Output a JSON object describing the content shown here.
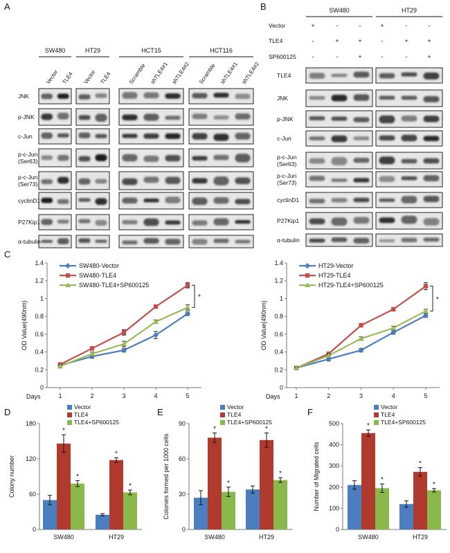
{
  "panels": {
    "A": {
      "letter": "A",
      "groups": [
        {
          "name": "SW480",
          "lanes": [
            "Vector",
            "TLE4"
          ]
        },
        {
          "name": "HT29",
          "lanes": [
            "Vector",
            "TLE4"
          ]
        },
        {
          "name": "HCT15",
          "lanes": [
            "Scramble",
            "shTLE4#1",
            "shTLE4#2"
          ]
        },
        {
          "name": "HCT116",
          "lanes": [
            "Scramble",
            "shTLE4#1",
            "shTLE4#2"
          ]
        }
      ],
      "rows": [
        "JNK",
        "p-JNK",
        "c-Jun",
        "p-c-Jun\n(Ser63)",
        "p-c-Jun\n(Ser73)",
        "cyclinD1",
        "P27Kip1",
        "α-tubulin"
      ]
    },
    "B": {
      "letter": "B",
      "groups": [
        "SW480",
        "HT29"
      ],
      "treatments": [
        {
          "label": "Vector",
          "signs": [
            "+",
            "-",
            "-",
            "+",
            "-",
            "-"
          ]
        },
        {
          "label": "TLE4",
          "signs": [
            "-",
            "+",
            "+",
            "-",
            "+",
            "+"
          ]
        },
        {
          "label": "SP600125",
          "signs": [
            "-",
            "-",
            "+",
            "-",
            "-",
            "+"
          ]
        }
      ],
      "rows": [
        "TLE4",
        "JNK",
        "p-JNK",
        "c-Jun",
        "p-c-Jun\n(Ser63)",
        "p-c-Jun\n(Ser73)",
        "cyclinD1",
        "P27Kip1",
        "α-tubulin"
      ]
    },
    "C": {
      "letter": "C"
    },
    "D": {
      "letter": "D"
    },
    "E": {
      "letter": "E"
    },
    "F": {
      "letter": "F"
    }
  },
  "colors": {
    "vector": "#4a7ebf",
    "tle4": "#c0504d",
    "sp": "#9bbb59",
    "bar_vector": "#4a7ebf",
    "bar_tle4": "#b03a2e",
    "bar_sp": "#8ab84a"
  },
  "chart_data": [
    {
      "id": "C-left",
      "type": "line",
      "x": [
        1,
        2,
        3,
        4,
        5
      ],
      "xlabel": "Days",
      "ylabel": "OD Value(490nm)",
      "ylim": [
        0,
        1.4
      ],
      "yticks": [
        0,
        0.2,
        0.4,
        0.6,
        0.8,
        1.0,
        1.2,
        1.4
      ],
      "yticklabels": [
        "0",
        "0.2",
        "0.4",
        "0.6",
        "0.8",
        "1",
        "1.2",
        "1.4"
      ],
      "series": [
        {
          "name": "SW480-Vector",
          "values": [
            0.25,
            0.35,
            0.42,
            0.59,
            0.83
          ],
          "errors": [
            0.02,
            0.02,
            0.02,
            0.04,
            0.02
          ]
        },
        {
          "name": "SW480-TLE4",
          "values": [
            0.26,
            0.44,
            0.62,
            0.91,
            1.15
          ],
          "errors": [
            0.02,
            0.02,
            0.03,
            0.02,
            0.03
          ]
        },
        {
          "name": "SW480-TLE4+SP600125",
          "values": [
            0.24,
            0.38,
            0.49,
            0.74,
            0.9
          ],
          "errors": [
            0.02,
            0.02,
            0.03,
            0.02,
            0.03
          ]
        }
      ],
      "annotation": "*"
    },
    {
      "id": "C-right",
      "type": "line",
      "x": [
        1,
        2,
        3,
        4,
        5
      ],
      "xlabel": "Days",
      "ylabel": "OD Value(490nm)",
      "ylim": [
        0,
        1.4
      ],
      "yticks": [
        0,
        0.2,
        0.4,
        0.6,
        0.8,
        1.0,
        1.2,
        1.4
      ],
      "yticklabels": [
        "0",
        "0.2",
        "0.4",
        "0.6",
        "0.8",
        "1",
        "1.2",
        "1.4"
      ],
      "series": [
        {
          "name": "HT29-Vector",
          "values": [
            0.22,
            0.32,
            0.42,
            0.62,
            0.81
          ],
          "errors": [
            0.01,
            0.02,
            0.02,
            0.02,
            0.02
          ]
        },
        {
          "name": "HT29-TLE4",
          "values": [
            0.22,
            0.38,
            0.7,
            0.88,
            1.14
          ],
          "errors": [
            0.01,
            0.02,
            0.02,
            0.02,
            0.04
          ]
        },
        {
          "name": "HT29-TLE4+SP600125",
          "values": [
            0.22,
            0.36,
            0.55,
            0.67,
            0.86
          ],
          "errors": [
            0.01,
            0.02,
            0.02,
            0.02,
            0.02
          ]
        }
      ],
      "annotation": "*"
    },
    {
      "id": "D",
      "type": "bar",
      "ylabel": "Colony number",
      "categories": [
        "SW480",
        "HT29"
      ],
      "ylim": [
        0,
        180
      ],
      "yticks": [
        0,
        60,
        120,
        180
      ],
      "legend": [
        "Vector",
        "TLE4",
        "TLE4+SP600125"
      ],
      "series": [
        {
          "name": "Vector",
          "values": [
            50,
            25
          ],
          "errors": [
            8,
            2
          ]
        },
        {
          "name": "TLE4",
          "values": [
            146,
            118
          ],
          "errors": [
            15,
            4
          ]
        },
        {
          "name": "TLE4+SP600125",
          "values": [
            78,
            63
          ],
          "errors": [
            5,
            4
          ]
        }
      ],
      "stars": [
        [
          false,
          true,
          true
        ],
        [
          false,
          true,
          true
        ]
      ],
      "star": "*"
    },
    {
      "id": "E",
      "type": "bar",
      "ylabel": "Colonies formed per 1000 cells",
      "categories": [
        "SW480",
        "HT29"
      ],
      "ylim": [
        0,
        90
      ],
      "yticks": [
        0,
        30,
        60,
        90
      ],
      "legend": [
        "Vector",
        "TLE4",
        "TLE4+SP600125"
      ],
      "series": [
        {
          "name": "Vector",
          "values": [
            27,
            34
          ],
          "errors": [
            6,
            3
          ]
        },
        {
          "name": "TLE4",
          "values": [
            78,
            76
          ],
          "errors": [
            4,
            6
          ]
        },
        {
          "name": "TLE4+SP600125",
          "values": [
            32,
            42
          ],
          "errors": [
            4,
            2
          ]
        }
      ],
      "stars": [
        [
          false,
          true,
          true
        ],
        [
          false,
          true,
          true
        ]
      ],
      "star": "*"
    },
    {
      "id": "F",
      "type": "bar",
      "ylabel": "Number of Migrated cells",
      "categories": [
        "SW480",
        "HT29"
      ],
      "ylim": [
        0,
        500
      ],
      "yticks": [
        0,
        100,
        200,
        300,
        400,
        500
      ],
      "legend": [
        "Vector",
        "TLE4",
        "TLE4+SP600125"
      ],
      "series": [
        {
          "name": "Vector",
          "values": [
            210,
            120
          ],
          "errors": [
            20,
            15
          ]
        },
        {
          "name": "TLE4",
          "values": [
            455,
            272
          ],
          "errors": [
            15,
            20
          ]
        },
        {
          "name": "TLE4+SP600125",
          "values": [
            195,
            185
          ],
          "errors": [
            20,
            8
          ]
        }
      ],
      "stars": [
        [
          false,
          true,
          true
        ],
        [
          false,
          true,
          true
        ]
      ],
      "star": "*"
    }
  ]
}
